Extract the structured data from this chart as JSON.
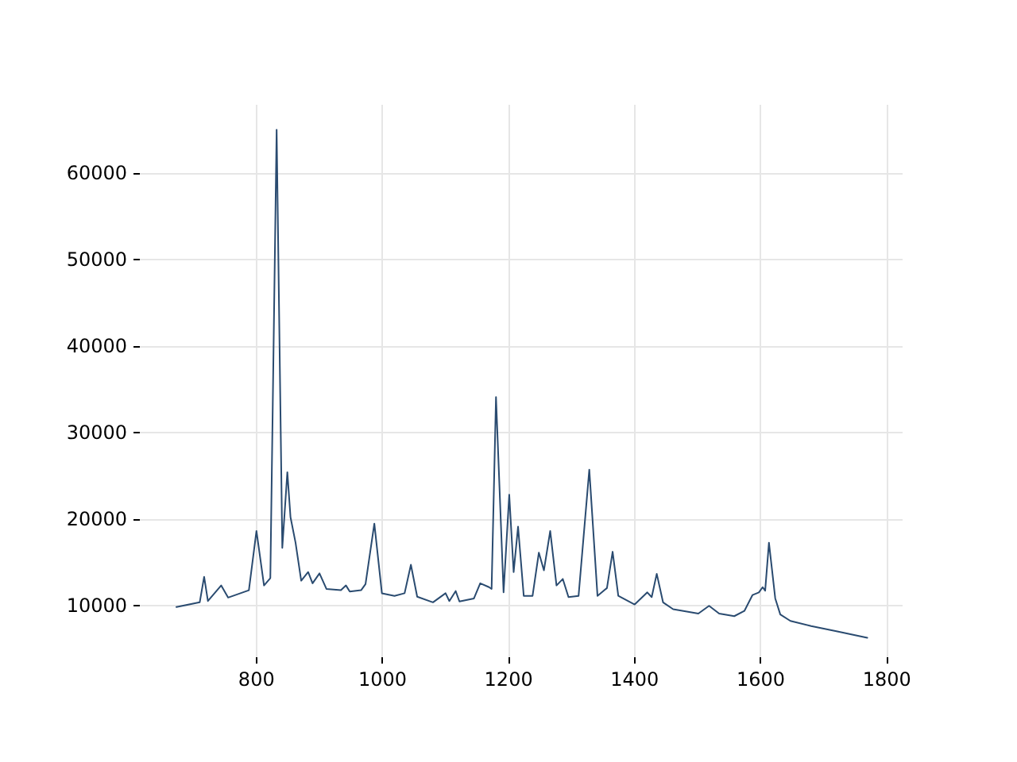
{
  "chart_data": {
    "type": "line",
    "x": [
      673,
      710,
      717,
      723,
      744,
      755,
      788,
      800,
      812,
      822,
      832,
      841,
      849,
      854,
      862,
      871,
      882,
      889,
      900,
      911,
      934,
      942,
      948,
      966,
      973,
      987,
      999,
      1019,
      1035,
      1045,
      1055,
      1080,
      1100,
      1106,
      1116,
      1122,
      1145,
      1155,
      1169,
      1173,
      1180,
      1192,
      1201,
      1208,
      1215,
      1224,
      1238,
      1248,
      1256,
      1266,
      1276,
      1286,
      1295,
      1311,
      1328,
      1341,
      1356,
      1365,
      1374,
      1400,
      1420,
      1427,
      1435,
      1445,
      1461,
      1501,
      1518,
      1534,
      1558,
      1574,
      1587,
      1597,
      1603,
      1607,
      1613,
      1623,
      1631,
      1647,
      1680,
      1720,
      1769
    ],
    "series": [
      {
        "color": "#2a4b70",
        "values": [
          9800,
          10350,
          13300,
          10500,
          12300,
          10900,
          11750,
          18600,
          12300,
          13150,
          65000,
          16650,
          25400,
          20200,
          17250,
          12850,
          13850,
          12550,
          13700,
          11900,
          11750,
          12300,
          11600,
          11750,
          12450,
          19450,
          11400,
          11100,
          11400,
          14700,
          11000,
          10350,
          11400,
          10500,
          11650,
          10450,
          10800,
          12550,
          12100,
          11900,
          34100,
          11500,
          22800,
          13850,
          19100,
          11100,
          11100,
          16100,
          14050,
          18600,
          12300,
          13050,
          10950,
          11100,
          25700,
          11100,
          12000,
          16200,
          11100,
          10100,
          11500,
          10950,
          13650,
          10350,
          9550,
          9050,
          9950,
          9050,
          8750,
          9350,
          11200,
          11500,
          12100,
          11700,
          17250,
          10800,
          8950,
          8200,
          7600,
          7000,
          6250
        ]
      }
    ],
    "xlim": [
      615,
      1825
    ],
    "xticks": [
      800,
      1000,
      1200,
      1400,
      1600,
      1800
    ],
    "ylim": [
      4000,
      67900
    ],
    "yticks": [
      10000,
      20000,
      30000,
      40000,
      50000,
      60000
    ],
    "grid": true,
    "marker": "none",
    "line_style": "solid"
  }
}
